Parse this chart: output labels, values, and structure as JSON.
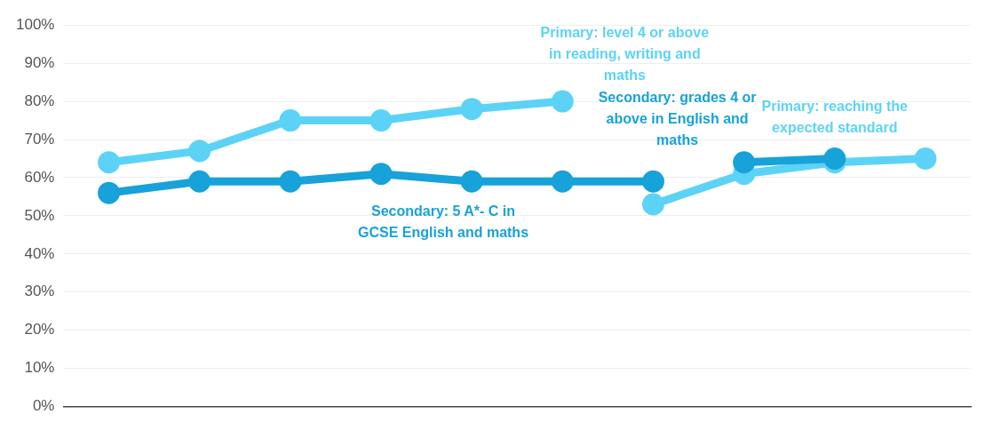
{
  "chart_data": {
    "type": "line",
    "categories": [
      null,
      null,
      null,
      null,
      null,
      null,
      null,
      null,
      null,
      null
    ],
    "series": [
      {
        "name": "Primary: level 4 or above in reading, writing and maths",
        "color": "#5cd3f6",
        "values": [
          64,
          67,
          75,
          75,
          78,
          80,
          null,
          null,
          null,
          null
        ]
      },
      {
        "name": "Secondary: 5 A*- C in GCSE English and maths",
        "color": "#17a2d9",
        "values": [
          56,
          59,
          59,
          61,
          59,
          59,
          59,
          null,
          null,
          null
        ]
      },
      {
        "name": "Primary: reaching the expected standard",
        "color": "#5cd3f6",
        "values": [
          null,
          null,
          null,
          null,
          null,
          null,
          53,
          61,
          64,
          65
        ]
      },
      {
        "name": "Secondary: grades 4 or above in English and maths",
        "color": "#17a2d9",
        "values": [
          null,
          null,
          null,
          null,
          null,
          null,
          null,
          64,
          65,
          null
        ]
      }
    ],
    "ylim": [
      0,
      100
    ],
    "yticks": [
      {
        "value": 0,
        "label": "0%"
      },
      {
        "value": 10,
        "label": "10%"
      },
      {
        "value": 20,
        "label": "20%"
      },
      {
        "value": 30,
        "label": "30%"
      },
      {
        "value": 40,
        "label": "40%"
      },
      {
        "value": 50,
        "label": "50%"
      },
      {
        "value": 60,
        "label": "60%"
      },
      {
        "value": 70,
        "label": "70%"
      },
      {
        "value": 80,
        "label": "80%"
      },
      {
        "value": 90,
        "label": "90%"
      },
      {
        "value": 100,
        "label": "100%"
      }
    ],
    "grid": "y",
    "legend": false,
    "marker": "circle",
    "line_style": "solid"
  }
}
